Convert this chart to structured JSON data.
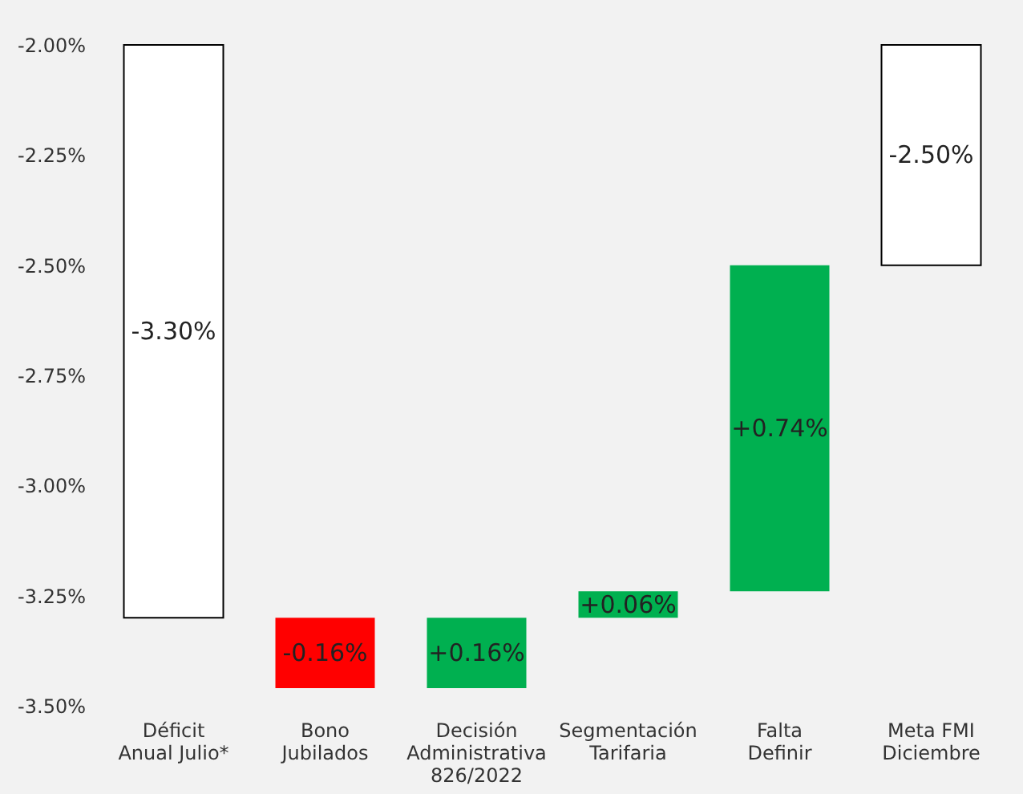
{
  "chart_data": {
    "type": "bar",
    "categories": [
      "Déficit\nAnual Julio*",
      "Bono\nJubilados",
      "Decisión\nAdministrativa\n826/2022",
      "Segmentación\nTarifaria",
      "Falta\nDefinir",
      "Meta FMI\nDiciembre"
    ],
    "values": [
      -1.3,
      -0.16,
      0.16,
      0.06,
      0.74,
      -0.5
    ],
    "base": [
      -2.0,
      -3.3,
      -3.46,
      -3.3,
      -3.24,
      -2.0
    ],
    "colors": [
      "#ffffff",
      "#ff0000",
      "#00b050",
      "#00b050",
      "#00b050",
      "#ffffff"
    ],
    "value_labels": [
      "-3.30%",
      "-0.16%",
      "+0.16%",
      "+0.06%",
      "+0.74%",
      "-2.50%"
    ],
    "ylim": [
      -3.5,
      -2.0
    ],
    "yticks": [
      {
        "value": -3.5,
        "label": "-3.50%"
      },
      {
        "value": -3.25,
        "label": "-3.25%"
      },
      {
        "value": -3.0,
        "label": "-3.00%"
      },
      {
        "value": -2.75,
        "label": "-2.75%"
      },
      {
        "value": -2.5,
        "label": "-2.50%"
      },
      {
        "value": -2.25,
        "label": "-2.25%"
      },
      {
        "value": -2.0,
        "label": "-2.00%"
      }
    ],
    "grid": false
  }
}
